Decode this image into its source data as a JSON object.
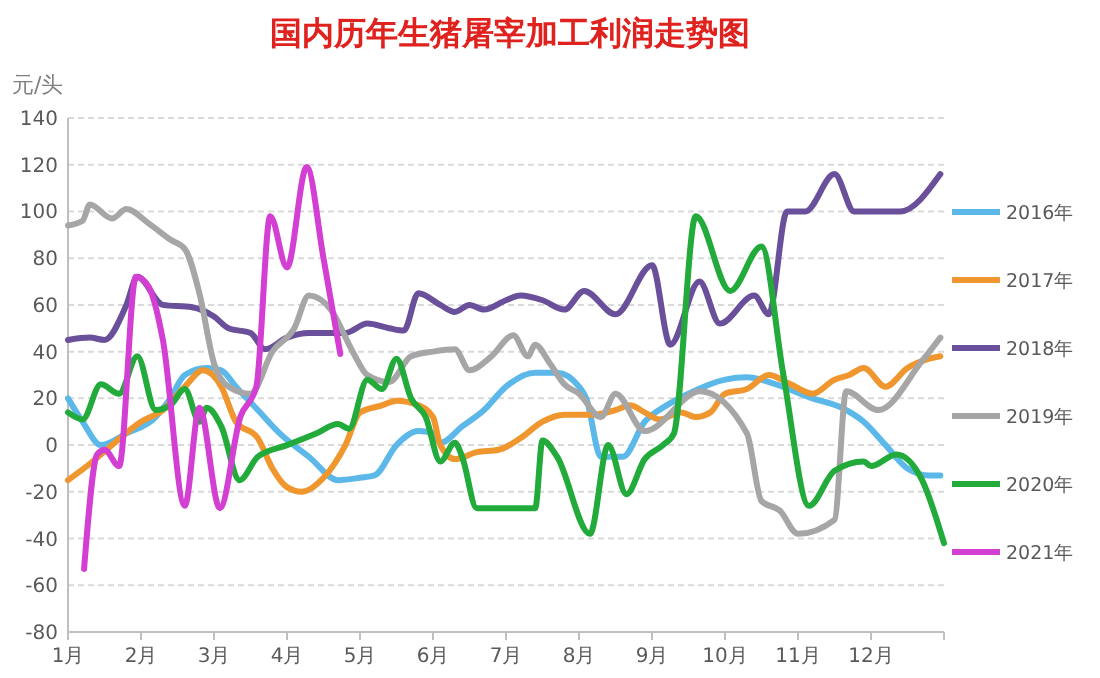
{
  "chart_data": {
    "type": "line",
    "title": "国内历年生猪屠宰加工利润走势图",
    "ylabel": "元/头",
    "xlim": [
      1,
      13
    ],
    "xticks": [
      {
        "value": 1,
        "label": "1月"
      },
      {
        "value": 2,
        "label": "2月"
      },
      {
        "value": 3,
        "label": "3月"
      },
      {
        "value": 4,
        "label": "4月"
      },
      {
        "value": 5,
        "label": "5月"
      },
      {
        "value": 6,
        "label": "6月"
      },
      {
        "value": 7,
        "label": "7月"
      },
      {
        "value": 8,
        "label": "8月"
      },
      {
        "value": 9,
        "label": "9月"
      },
      {
        "value": 10,
        "label": "10月"
      },
      {
        "value": 11,
        "label": "11月"
      },
      {
        "value": 12,
        "label": "12月"
      },
      {
        "value": 13,
        "label": null
      }
    ],
    "ylim": [
      -80,
      140
    ],
    "yticks": [
      -80,
      -60,
      -40,
      -20,
      0,
      20,
      40,
      60,
      80,
      100,
      120,
      140
    ],
    "grid": "y",
    "legend": "right",
    "marker": "none",
    "line_style": "solid",
    "series": [
      {
        "name": "2016年",
        "color": "#5bb8e8",
        "x": [
          1,
          1.2,
          1.45,
          1.8,
          2.2,
          2.4,
          2.6,
          2.9,
          3.1,
          3.3,
          3.6,
          3.9,
          4.3,
          4.7,
          5,
          5.2,
          5.5,
          5.8,
          6,
          6.1,
          6.4,
          6.7,
          7,
          7.4,
          7.7,
          8,
          8.1,
          8.3,
          8.6,
          8.9,
          9.2,
          9.5,
          10,
          10.3,
          10.7,
          11.2,
          11.6,
          11.9,
          12.2,
          12.5,
          12.8,
          12.95
        ],
        "values": [
          20,
          10,
          0,
          5,
          12,
          20,
          30,
          33,
          32,
          25,
          15,
          5,
          -5,
          -15,
          -14,
          -13,
          0,
          6,
          5,
          1,
          8,
          15,
          25,
          31,
          31,
          25,
          20,
          -5,
          -5,
          10,
          17,
          22,
          28,
          29,
          26,
          20,
          16,
          10,
          0,
          -10,
          -13,
          -13
        ]
      },
      {
        "name": "2017年",
        "color": "#f0962e",
        "x": [
          1,
          1.3,
          1.6,
          2,
          2.3,
          2.6,
          2.85,
          3.1,
          3.3,
          3.6,
          3.8,
          4,
          4.2,
          4.5,
          4.8,
          5,
          5.3,
          5.5,
          5.8,
          6,
          6.1,
          6.3,
          6.6,
          6.9,
          7.2,
          7.5,
          7.8,
          8.2,
          8.5,
          8.7,
          8.9,
          9.1,
          9.4,
          9.6,
          9.8,
          10,
          10.3,
          10.6,
          10.9,
          11.2,
          11.5,
          11.7,
          11.9,
          12.2,
          12.5,
          12.8,
          12.95
        ],
        "values": [
          -15,
          -8,
          0,
          10,
          15,
          25,
          32,
          25,
          10,
          3,
          -10,
          -18,
          -20,
          -14,
          0,
          14,
          17,
          19,
          17,
          12,
          0,
          -6,
          -3,
          -2,
          3,
          10,
          13,
          13,
          15,
          17,
          14,
          11,
          14,
          12,
          14,
          22,
          24,
          30,
          26,
          22,
          28,
          30,
          33,
          25,
          33,
          37,
          38
        ]
      },
      {
        "name": "2018年",
        "color": "#6a4f9a",
        "x": [
          1,
          1.3,
          1.5,
          1.8,
          1.95,
          2.3,
          2.7,
          3,
          3.2,
          3.5,
          3.7,
          4,
          4.3,
          4.8,
          5.1,
          5.4,
          5.6,
          5.8,
          6.1,
          6.3,
          6.5,
          6.7,
          7,
          7.2,
          7.5,
          7.8,
          8.07,
          8.5,
          9,
          9.25,
          9.65,
          9.93,
          10.4,
          10.6,
          10.85,
          11.1,
          11.5,
          11.77,
          12.4,
          12.95
        ],
        "values": [
          45,
          46,
          45,
          60,
          72,
          60,
          59,
          55,
          50,
          48,
          41,
          46,
          48,
          48,
          52,
          50,
          49,
          65,
          60,
          57,
          60,
          58,
          62,
          64,
          62,
          58,
          66,
          56,
          77,
          43,
          70,
          52,
          64,
          56,
          100,
          100,
          116,
          100,
          100,
          116
        ]
      },
      {
        "name": "2019年",
        "color": "#a6a6a6",
        "x": [
          1,
          1.2,
          1.3,
          1.6,
          1.8,
          2.1,
          2.4,
          2.6,
          2.8,
          3,
          3.2,
          3.5,
          3.8,
          4.1,
          4.3,
          4.6,
          4.9,
          5.1,
          5.4,
          5.7,
          6,
          6.3,
          6.5,
          6.8,
          7.1,
          7.3,
          7.4,
          7.6,
          7.8,
          8,
          8.3,
          8.5,
          8.9,
          9.66,
          10.3,
          10.5,
          10.75,
          11,
          11.5,
          11.66,
          12.1,
          12.7,
          12.95
        ],
        "values": [
          94,
          96,
          103,
          97,
          101,
          95,
          88,
          84,
          65,
          35,
          25,
          22,
          40,
          50,
          64,
          58,
          40,
          30,
          27,
          38,
          40,
          41,
          32,
          38,
          47,
          38,
          43,
          35,
          26,
          22,
          12,
          22,
          6,
          23,
          5,
          -24,
          -28,
          -38,
          -32,
          23,
          15,
          36,
          46
        ]
      },
      {
        "name": "2020年",
        "color": "#22aa3a",
        "x": [
          1,
          1.2,
          1.45,
          1.7,
          1.95,
          2.2,
          2.4,
          2.6,
          2.8,
          2.9,
          3.1,
          3.35,
          3.6,
          4,
          4.4,
          4.7,
          4.85,
          5.1,
          5.3,
          5.5,
          5.7,
          5.9,
          6.1,
          6.3,
          6.4,
          6.6,
          7,
          7.4,
          7.5,
          7.7,
          8.15,
          8.4,
          8.65,
          8.9,
          9.15,
          9.3,
          9.6,
          10.07,
          10.5,
          10.8,
          11.15,
          11.5,
          11.9,
          12,
          12.35,
          12.7,
          13
        ],
        "values": [
          14,
          11,
          26,
          22,
          38,
          15,
          17,
          24,
          10,
          16,
          8,
          -15,
          -5,
          0,
          5,
          9,
          7,
          28,
          24,
          37,
          20,
          12,
          -7,
          1,
          -5,
          -27,
          -27,
          -27,
          2,
          -5,
          -38,
          0,
          -21,
          -6,
          0,
          5,
          98,
          66,
          85,
          30,
          -26,
          -11,
          -7,
          -9,
          -4,
          -15,
          -42
        ]
      },
      {
        "name": "2021年",
        "color": "#d23fd2",
        "x": [
          1.22,
          1.4,
          1.5,
          1.7,
          1.93,
          2.1,
          2.3,
          2.6,
          2.8,
          3.08,
          3.36,
          3.58,
          3.77,
          4,
          4.27,
          4.5,
          4.73
        ],
        "values": [
          -53,
          -4,
          -2,
          -9,
          72,
          68,
          45,
          -26,
          16,
          -27,
          12,
          25,
          98,
          76,
          119,
          80,
          39
        ]
      }
    ]
  }
}
